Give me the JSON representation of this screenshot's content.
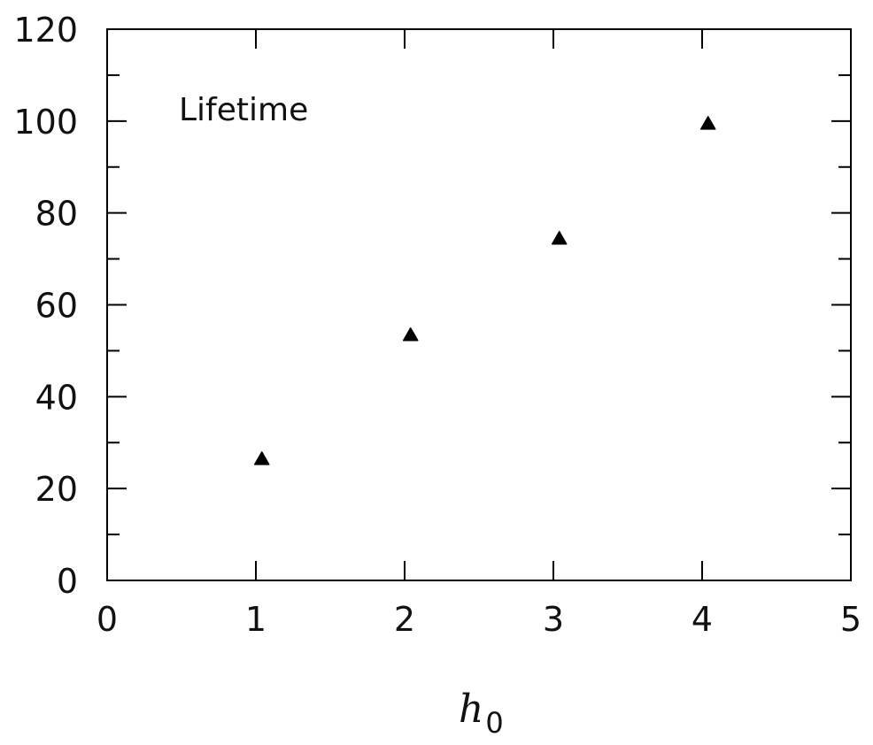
{
  "chart_data": {
    "type": "scatter",
    "annotation": "Lifetime",
    "xlabel_main": "h",
    "xlabel_sub": "0",
    "xlim": [
      0,
      5
    ],
    "ylim": [
      0,
      120
    ],
    "x_ticks": [
      0,
      1,
      2,
      3,
      4,
      5
    ],
    "y_ticks": [
      0,
      20,
      40,
      60,
      80,
      100,
      120
    ],
    "y_minor_step": 10,
    "x_minor_step": 1,
    "series": [
      {
        "marker": "triangle",
        "color": "#000000",
        "points": [
          {
            "x": 1.04,
            "y": 26.5
          },
          {
            "x": 2.04,
            "y": 53.5
          },
          {
            "x": 3.04,
            "y": 74.5
          },
          {
            "x": 4.04,
            "y": 99.5
          }
        ]
      }
    ]
  }
}
